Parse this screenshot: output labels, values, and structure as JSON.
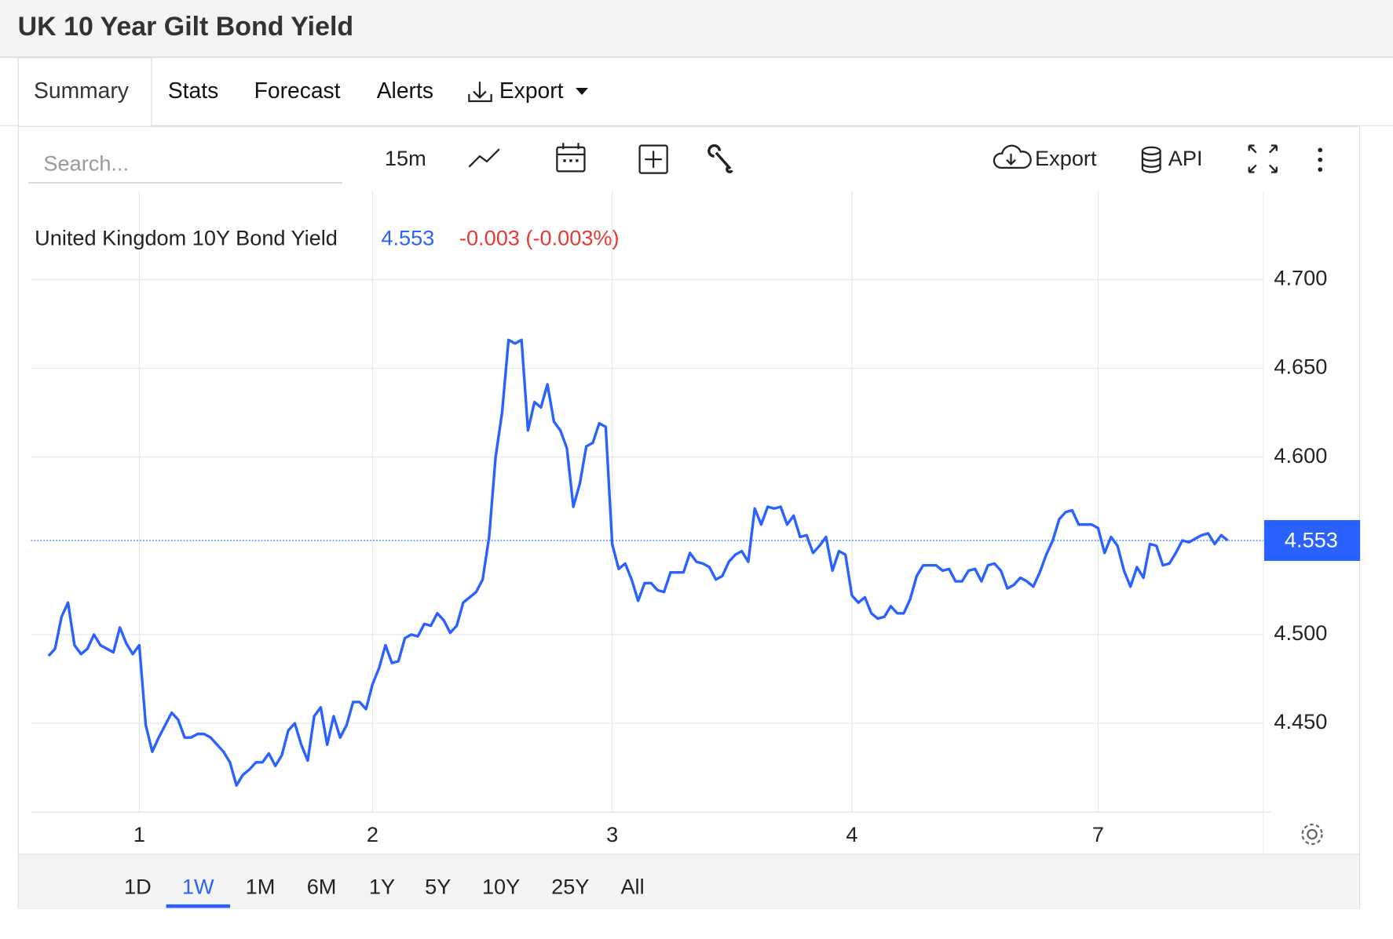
{
  "header": {
    "title": "UK 10 Year Gilt Bond Yield"
  },
  "tabs": [
    "Summary",
    "Stats",
    "Forecast",
    "Alerts",
    "Export"
  ],
  "toolbar": {
    "search": "Search...",
    "interval": "15m",
    "export": "Export",
    "api": "API"
  },
  "ranges": [
    "1D",
    "1W",
    "1M",
    "6M",
    "1Y",
    "5Y",
    "10Y",
    "25Y",
    "All"
  ],
  "chart_data": {
    "type": "line",
    "series": [
      {
        "name": "United Kingdom 10Y Bond Yield",
        "color": "#2962ff",
        "values": [
          4.488,
          4.492,
          4.51,
          4.518,
          4.494,
          4.489,
          4.492,
          4.5,
          4.494,
          4.492,
          4.49,
          4.504,
          4.495,
          4.489,
          4.494,
          4.449,
          4.434,
          4.442,
          4.449,
          4.456,
          4.452,
          4.442,
          4.442,
          4.444,
          4.444,
          4.442,
          4.438,
          4.434,
          4.428,
          4.415,
          4.421,
          4.424,
          4.428,
          4.428,
          4.433,
          4.426,
          4.432,
          4.446,
          4.45,
          4.438,
          4.429,
          4.454,
          4.459,
          4.438,
          4.454,
          4.442,
          4.449,
          4.462,
          4.462,
          4.458,
          4.472,
          4.481,
          4.494,
          4.484,
          4.485,
          4.498,
          4.5,
          4.499,
          4.506,
          4.505,
          4.512,
          4.508,
          4.501,
          4.505,
          4.518,
          4.521,
          4.524,
          4.531,
          4.555,
          4.6,
          4.625,
          4.666,
          4.664,
          4.666,
          4.615,
          4.631,
          4.628,
          4.641,
          4.62,
          4.615,
          4.605,
          4.572,
          4.585,
          4.606,
          4.608,
          4.619,
          4.617,
          4.551,
          4.537,
          4.54,
          4.531,
          4.519,
          4.529,
          4.529,
          4.525,
          4.524,
          4.535,
          4.535,
          4.535,
          4.546,
          4.541,
          4.54,
          4.538,
          4.531,
          4.533,
          4.541,
          4.545,
          4.547,
          4.541,
          4.571,
          4.562,
          4.572,
          4.571,
          4.572,
          4.562,
          4.567,
          4.555,
          4.556,
          4.546,
          4.55,
          4.555,
          4.536,
          4.547,
          4.545,
          4.522,
          4.518,
          4.521,
          4.512,
          4.509,
          4.51,
          4.516,
          4.512,
          4.512,
          4.52,
          4.533,
          4.539,
          4.539,
          4.539,
          4.536,
          4.537,
          4.53,
          4.53,
          4.536,
          4.537,
          4.53,
          4.539,
          4.54,
          4.536,
          4.526,
          4.528,
          4.532,
          4.53,
          4.527,
          4.535,
          4.545,
          4.553,
          4.565,
          4.569,
          4.57,
          4.562,
          4.562,
          4.562,
          4.56,
          4.546,
          4.555,
          4.55,
          4.536,
          4.527,
          4.538,
          4.532,
          4.551,
          4.55,
          4.539,
          4.54,
          4.546,
          4.553,
          4.552,
          4.554,
          4.556,
          4.557,
          4.551,
          4.556,
          4.553
        ]
      }
    ],
    "last_value": 4.553,
    "change": "-0.003 (-0.003%)",
    "xlim": [
      -2.7,
      187.5
    ],
    "xticks": [
      {
        "value": 14,
        "label": "1"
      },
      {
        "value": 50,
        "label": "2"
      },
      {
        "value": 87,
        "label": "3"
      },
      {
        "value": 124,
        "label": "4"
      },
      {
        "value": 162,
        "label": "7"
      }
    ],
    "ylim": [
      4.4,
      4.75
    ],
    "yticks": [
      {
        "value": 4.45,
        "label": "4.450"
      },
      {
        "value": 4.5,
        "label": "4.500"
      },
      {
        "value": 4.6,
        "label": "4.600"
      },
      {
        "value": 4.65,
        "label": "4.650"
      },
      {
        "value": 4.7,
        "label": "4.700"
      }
    ],
    "grid": true
  }
}
